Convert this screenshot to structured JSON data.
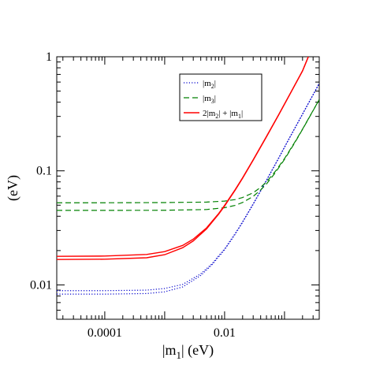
{
  "chart_data": {
    "type": "line",
    "xscale": "log",
    "yscale": "log",
    "xlim": [
      1.58e-05,
      0.38
    ],
    "ylim": [
      0.005,
      1
    ],
    "grid": false,
    "legend_position": "top-right",
    "xlabel_main": "|m",
    "xlabel_sub": "1",
    "xlabel_suffix": "| (eV)",
    "ylabel": "(eV)",
    "x_tick_labels": [
      {
        "value": 0.0001,
        "label": "0.0001"
      },
      {
        "value": 0.01,
        "label": "0.01"
      }
    ],
    "y_tick_labels": [
      {
        "value": 0.01,
        "label": "0.01"
      },
      {
        "value": 0.1,
        "label": "0.1"
      },
      {
        "value": 1,
        "label": "1"
      }
    ],
    "series": [
      {
        "name": "|m2|",
        "legend": {
          "pre": "|m",
          "sub": "2",
          "post": "|"
        },
        "color": "#0000cc",
        "style": "dotted",
        "curves": [
          {
            "x": [
              1.58e-05,
              1e-05,
              0.0001,
              0.0005,
              0.001,
              0.002,
              0.004,
              0.006,
              0.01,
              0.015,
              0.02,
              0.03,
              0.05,
              0.08,
              0.12,
              0.2,
              0.3,
              0.38
            ],
            "y": [
              0.0089,
              0.0089,
              0.0089,
              0.009,
              0.0093,
              0.0101,
              0.0125,
              0.0151,
              0.0207,
              0.0282,
              0.0358,
              0.0513,
              0.0828,
              0.13,
              0.193,
              0.315,
              0.465,
              0.585
            ]
          },
          {
            "x": [
              1.58e-05,
              0.0001,
              0.0005,
              0.001,
              0.002,
              0.004,
              0.006,
              0.01,
              0.015,
              0.02,
              0.03,
              0.05,
              0.08,
              0.12,
              0.2,
              0.3,
              0.38
            ],
            "y": [
              0.0083,
              0.0083,
              0.0084,
              0.0087,
              0.0096,
              0.0121,
              0.0148,
              0.0203,
              0.0278,
              0.0354,
              0.0509,
              0.0822,
              0.129,
              0.192,
              0.314,
              0.464,
              0.584
            ]
          }
        ]
      },
      {
        "name": "|m3|",
        "legend": {
          "pre": "|m",
          "sub": "3",
          "post": "|"
        },
        "color": "#008000",
        "style": "dashed",
        "curves": [
          {
            "x": [
              1.58e-05,
              0.0001,
              0.001,
              0.005,
              0.01,
              0.015,
              0.02,
              0.03,
              0.04,
              0.05,
              0.07,
              0.1,
              0.15,
              0.2,
              0.3,
              0.38
            ],
            "y": [
              0.0525,
              0.0525,
              0.0527,
              0.0532,
              0.0543,
              0.056,
              0.0584,
              0.0642,
              0.0717,
              0.08,
              0.0987,
              0.128,
              0.18,
              0.232,
              0.338,
              0.422
            ]
          },
          {
            "x": [
              1.58e-05,
              0.0001,
              0.001,
              0.005,
              0.01,
              0.015,
              0.02,
              0.03,
              0.04,
              0.05,
              0.07,
              0.1,
              0.15,
              0.2,
              0.3,
              0.38
            ],
            "y": [
              0.045,
              0.045,
              0.0451,
              0.0458,
              0.0475,
              0.0498,
              0.0528,
              0.0597,
              0.068,
              0.0768,
              0.0961,
              0.126,
              0.178,
              0.231,
              0.337,
              0.421
            ]
          }
        ]
      },
      {
        "name": "2|m2| + |m1|",
        "legend": {
          "pre": "2|m",
          "sub": "2",
          "post": "| + |m",
          "sub2": "1",
          "post2": "|"
        },
        "color": "#ff0000",
        "style": "solid",
        "curves": [
          {
            "x": [
              1.58e-05,
              0.0001,
              0.0005,
              0.001,
              0.002,
              0.003,
              0.005,
              0.008,
              0.01,
              0.015,
              0.02,
              0.03,
              0.05,
              0.08,
              0.12,
              0.2,
              0.25
            ],
            "y": [
              0.0178,
              0.0179,
              0.0185,
              0.0196,
              0.0222,
              0.0252,
              0.0316,
              0.0424,
              0.0498,
              0.0684,
              0.087,
              0.125,
              0.2,
              0.311,
              0.459,
              0.753,
              1.0
            ]
          },
          {
            "x": [
              1.58e-05,
              0.0001,
              0.0005,
              0.001,
              0.002,
              0.003,
              0.005,
              0.008,
              0.01,
              0.015,
              0.02,
              0.03,
              0.05,
              0.08,
              0.12,
              0.2,
              0.25
            ],
            "y": [
              0.0167,
              0.0168,
              0.0173,
              0.0184,
              0.0212,
              0.0243,
              0.031,
              0.0419,
              0.0492,
              0.0677,
              0.0863,
              0.124,
              0.199,
              0.31,
              0.458,
              0.752,
              1.0
            ]
          }
        ]
      }
    ]
  }
}
